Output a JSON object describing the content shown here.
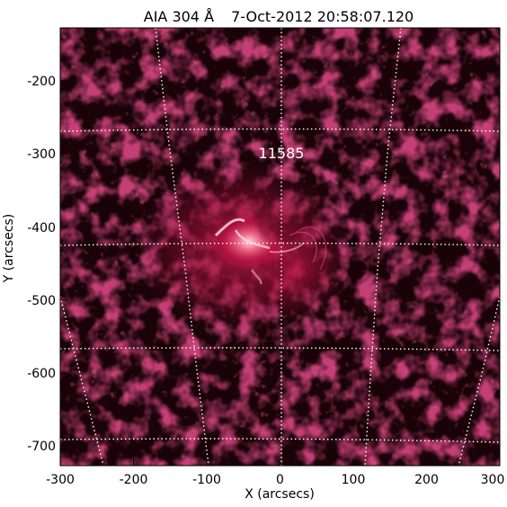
{
  "title": {
    "instrument": "AIA 304 Å",
    "datetime": "7-Oct-2012 20:58:07.120"
  },
  "annotation": {
    "region_label": "11585"
  },
  "axes": {
    "xlabel": "X (arcsecs)",
    "ylabel": "Y (arcsecs)",
    "xlim": [
      -300,
      300
    ],
    "ylim": [
      -730,
      -130
    ],
    "xticks": [
      -300,
      -200,
      -100,
      0,
      100,
      200,
      300
    ],
    "yticks": [
      -200,
      -300,
      -400,
      -500,
      -600,
      -700
    ]
  },
  "image": {
    "colormap": "AIA 304 red",
    "background_color": "#1a0308",
    "grid": "heliographic, dotted white"
  }
}
